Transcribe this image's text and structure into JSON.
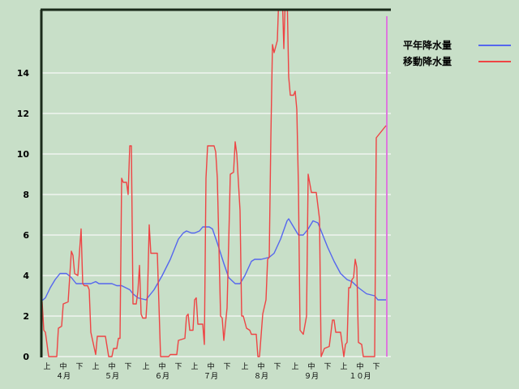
{
  "chart_data": {
    "type": "line",
    "title": "",
    "xlabel": "",
    "ylabel": "",
    "ylim": [
      0,
      17.1
    ],
    "yticks": [
      0,
      2,
      4,
      6,
      8,
      10,
      12,
      14
    ],
    "grid": "horizontal",
    "legend_placement": "right",
    "x_period_labels": [
      "上",
      "中",
      "下"
    ],
    "x_months": [
      {
        "month": 4,
        "label": "４月"
      },
      {
        "month": 5,
        "label": "５月"
      },
      {
        "month": 6,
        "label": "６月"
      },
      {
        "month": 7,
        "label": "７月"
      },
      {
        "month": 8,
        "label": "８月"
      },
      {
        "month": 9,
        "label": "９月"
      },
      {
        "month": 10,
        "label": "１０月"
      }
    ],
    "marker_date": "10/31",
    "colors": {
      "marker": "#dd77dd",
      "axis": "#1a2a1a",
      "grid": "#e6efe6"
    },
    "series": [
      {
        "name": "平年降水量",
        "color": "#5566ee",
        "points": [
          [
            "4/1",
            2.7
          ],
          [
            "4/4",
            2.9
          ],
          [
            "4/7",
            3.4
          ],
          [
            "4/10",
            3.8
          ],
          [
            "4/13",
            4.1
          ],
          [
            "4/17",
            4.1
          ],
          [
            "4/20",
            3.9
          ],
          [
            "4/23",
            3.6
          ],
          [
            "4/27",
            3.6
          ],
          [
            "5/2",
            3.6
          ],
          [
            "5/5",
            3.7
          ],
          [
            "5/7",
            3.6
          ],
          [
            "5/15",
            3.6
          ],
          [
            "5/18",
            3.5
          ],
          [
            "5/21",
            3.5
          ],
          [
            "5/26",
            3.3
          ],
          [
            "5/28",
            3.1
          ],
          [
            "5/31",
            2.9
          ],
          [
            "6/5",
            2.8
          ],
          [
            "6/10",
            3.3
          ],
          [
            "6/15",
            4.0
          ],
          [
            "6/20",
            4.8
          ],
          [
            "6/25",
            5.8
          ],
          [
            "6/28",
            6.1
          ],
          [
            "6/30",
            6.2
          ],
          [
            "7/3",
            6.1
          ],
          [
            "7/5",
            6.1
          ],
          [
            "7/8",
            6.2
          ],
          [
            "7/10",
            6.4
          ],
          [
            "7/14",
            6.4
          ],
          [
            "7/16",
            6.3
          ],
          [
            "7/19",
            5.6
          ],
          [
            "7/23",
            4.6
          ],
          [
            "7/26",
            3.9
          ],
          [
            "7/30",
            3.6
          ],
          [
            "8/2",
            3.6
          ],
          [
            "8/5",
            4.0
          ],
          [
            "8/9",
            4.7
          ],
          [
            "8/11",
            4.8
          ],
          [
            "8/15",
            4.8
          ],
          [
            "8/20",
            4.9
          ],
          [
            "8/23",
            5.1
          ],
          [
            "8/27",
            5.8
          ],
          [
            "8/31",
            6.7
          ],
          [
            "9/1",
            6.8
          ],
          [
            "9/4",
            6.4
          ],
          [
            "9/7",
            6.0
          ],
          [
            "9/10",
            6.0
          ],
          [
            "9/13",
            6.3
          ],
          [
            "9/16",
            6.7
          ],
          [
            "9/19",
            6.6
          ],
          [
            "9/21",
            6.2
          ],
          [
            "9/25",
            5.4
          ],
          [
            "9/29",
            4.7
          ],
          [
            "10/3",
            4.1
          ],
          [
            "10/7",
            3.8
          ],
          [
            "10/10",
            3.7
          ],
          [
            "10/14",
            3.4
          ],
          [
            "10/19",
            3.1
          ],
          [
            "10/24",
            3.0
          ],
          [
            "10/26",
            2.8
          ],
          [
            "10/31",
            2.8
          ]
        ]
      },
      {
        "name": "移動降水量",
        "color": "#ee4444",
        "points": [
          [
            "4/1",
            0
          ],
          [
            "4/2",
            2.7
          ],
          [
            "4/3",
            1.3
          ],
          [
            "4/4",
            1.2
          ],
          [
            "4/6",
            0
          ],
          [
            "4/11",
            0
          ],
          [
            "4/12",
            1.4
          ],
          [
            "4/14",
            1.5
          ],
          [
            "4/15",
            2.6
          ],
          [
            "4/18",
            2.7
          ],
          [
            "4/20",
            5.2
          ],
          [
            "4/21",
            5.0
          ],
          [
            "4/22",
            4.1
          ],
          [
            "4/24",
            4.0
          ],
          [
            "4/26",
            6.3
          ],
          [
            "4/27",
            3.6
          ],
          [
            "4/28",
            3.5
          ],
          [
            "4/30",
            3.5
          ],
          [
            "5/1",
            3.3
          ],
          [
            "5/2",
            1.2
          ],
          [
            "5/5",
            0.1
          ],
          [
            "5/6",
            1.0
          ],
          [
            "5/11",
            1.0
          ],
          [
            "5/13",
            0
          ],
          [
            "5/15",
            0
          ],
          [
            "5/16",
            0.4
          ],
          [
            "5/18",
            0.4
          ],
          [
            "5/19",
            0.9
          ],
          [
            "5/20",
            0.9
          ],
          [
            "5/21",
            8.8
          ],
          [
            "5/22",
            8.6
          ],
          [
            "5/24",
            8.6
          ],
          [
            "5/25",
            8.0
          ],
          [
            "5/26",
            10.4
          ],
          [
            "5/27",
            10.4
          ],
          [
            "5/28",
            2.6
          ],
          [
            "5/30",
            2.6
          ],
          [
            "5/31",
            3.2
          ],
          [
            "6/1",
            4.5
          ],
          [
            "6/2",
            2.1
          ],
          [
            "6/3",
            1.9
          ],
          [
            "6/5",
            1.9
          ],
          [
            "6/6",
            3.2
          ],
          [
            "6/7",
            6.5
          ],
          [
            "6/8",
            5.1
          ],
          [
            "6/12",
            5.1
          ],
          [
            "6/14",
            0
          ],
          [
            "6/19",
            0
          ],
          [
            "6/20",
            0.1
          ],
          [
            "6/24",
            0.1
          ],
          [
            "6/25",
            0.8
          ],
          [
            "6/29",
            0.9
          ],
          [
            "6/30",
            2.0
          ],
          [
            "7/1",
            2.1
          ],
          [
            "7/2",
            1.3
          ],
          [
            "7/4",
            1.3
          ],
          [
            "7/5",
            2.8
          ],
          [
            "7/6",
            2.9
          ],
          [
            "7/7",
            1.6
          ],
          [
            "7/10",
            1.6
          ],
          [
            "7/11",
            0.6
          ],
          [
            "7/12",
            8.8
          ],
          [
            "7/13",
            10.4
          ],
          [
            "7/17",
            10.4
          ],
          [
            "7/18",
            10.1
          ],
          [
            "7/19",
            8.8
          ],
          [
            "7/21",
            2.0
          ],
          [
            "7/22",
            1.9
          ],
          [
            "7/23",
            0.8
          ],
          [
            "7/25",
            2.4
          ],
          [
            "7/26",
            5.6
          ],
          [
            "7/27",
            9.0
          ],
          [
            "7/29",
            9.1
          ],
          [
            "7/30",
            10.6
          ],
          [
            "7/31",
            10.0
          ],
          [
            "8/2",
            7.2
          ],
          [
            "8/3",
            2.0
          ],
          [
            "8/4",
            2.0
          ],
          [
            "8/6",
            1.4
          ],
          [
            "8/8",
            1.3
          ],
          [
            "8/9",
            1.1
          ],
          [
            "8/12",
            1.1
          ],
          [
            "8/13",
            0
          ],
          [
            "8/14",
            0
          ],
          [
            "8/16",
            2.1
          ],
          [
            "8/18",
            2.8
          ],
          [
            "8/19",
            4.8
          ],
          [
            "8/20",
            4.9
          ],
          [
            "8/21",
            10.8
          ],
          [
            "8/22",
            15.4
          ],
          [
            "8/23",
            15.0
          ],
          [
            "8/25",
            15.6
          ],
          [
            "8/26",
            18
          ],
          [
            "8/28",
            18
          ],
          [
            "8/29",
            15.2
          ],
          [
            "8/30",
            18
          ],
          [
            "8/31",
            18
          ],
          [
            "9/1",
            13.8
          ],
          [
            "9/2",
            12.9
          ],
          [
            "9/4",
            12.9
          ],
          [
            "9/5",
            13.1
          ],
          [
            "9/6",
            12.2
          ],
          [
            "9/7",
            8.4
          ],
          [
            "9/8",
            1.3
          ],
          [
            "9/9",
            1.2
          ],
          [
            "9/10",
            1.1
          ],
          [
            "9/12",
            2.0
          ],
          [
            "9/13",
            9.0
          ],
          [
            "9/15",
            8.1
          ],
          [
            "9/18",
            8.1
          ],
          [
            "9/20",
            6.8
          ],
          [
            "9/21",
            0
          ],
          [
            "9/23",
            0.4
          ],
          [
            "9/26",
            0.5
          ],
          [
            "9/28",
            1.8
          ],
          [
            "9/29",
            1.8
          ],
          [
            "9/30",
            1.2
          ],
          [
            "10/3",
            1.2
          ],
          [
            "10/5",
            0
          ],
          [
            "10/6",
            0.6
          ],
          [
            "10/7",
            0.7
          ],
          [
            "10/8",
            3.4
          ],
          [
            "10/9",
            3.4
          ],
          [
            "10/10",
            3.8
          ],
          [
            "10/11",
            3.9
          ],
          [
            "10/12",
            4.8
          ],
          [
            "10/13",
            4.4
          ],
          [
            "10/14",
            0.7
          ],
          [
            "10/16",
            0.6
          ],
          [
            "10/17",
            0
          ],
          [
            "10/24",
            0
          ],
          [
            "10/25",
            10.8
          ],
          [
            "10/26",
            10.9
          ],
          [
            "10/27",
            11.0
          ],
          [
            "10/28",
            11.1
          ],
          [
            "10/30",
            11.3
          ],
          [
            "10/31",
            11.4
          ]
        ]
      }
    ]
  }
}
